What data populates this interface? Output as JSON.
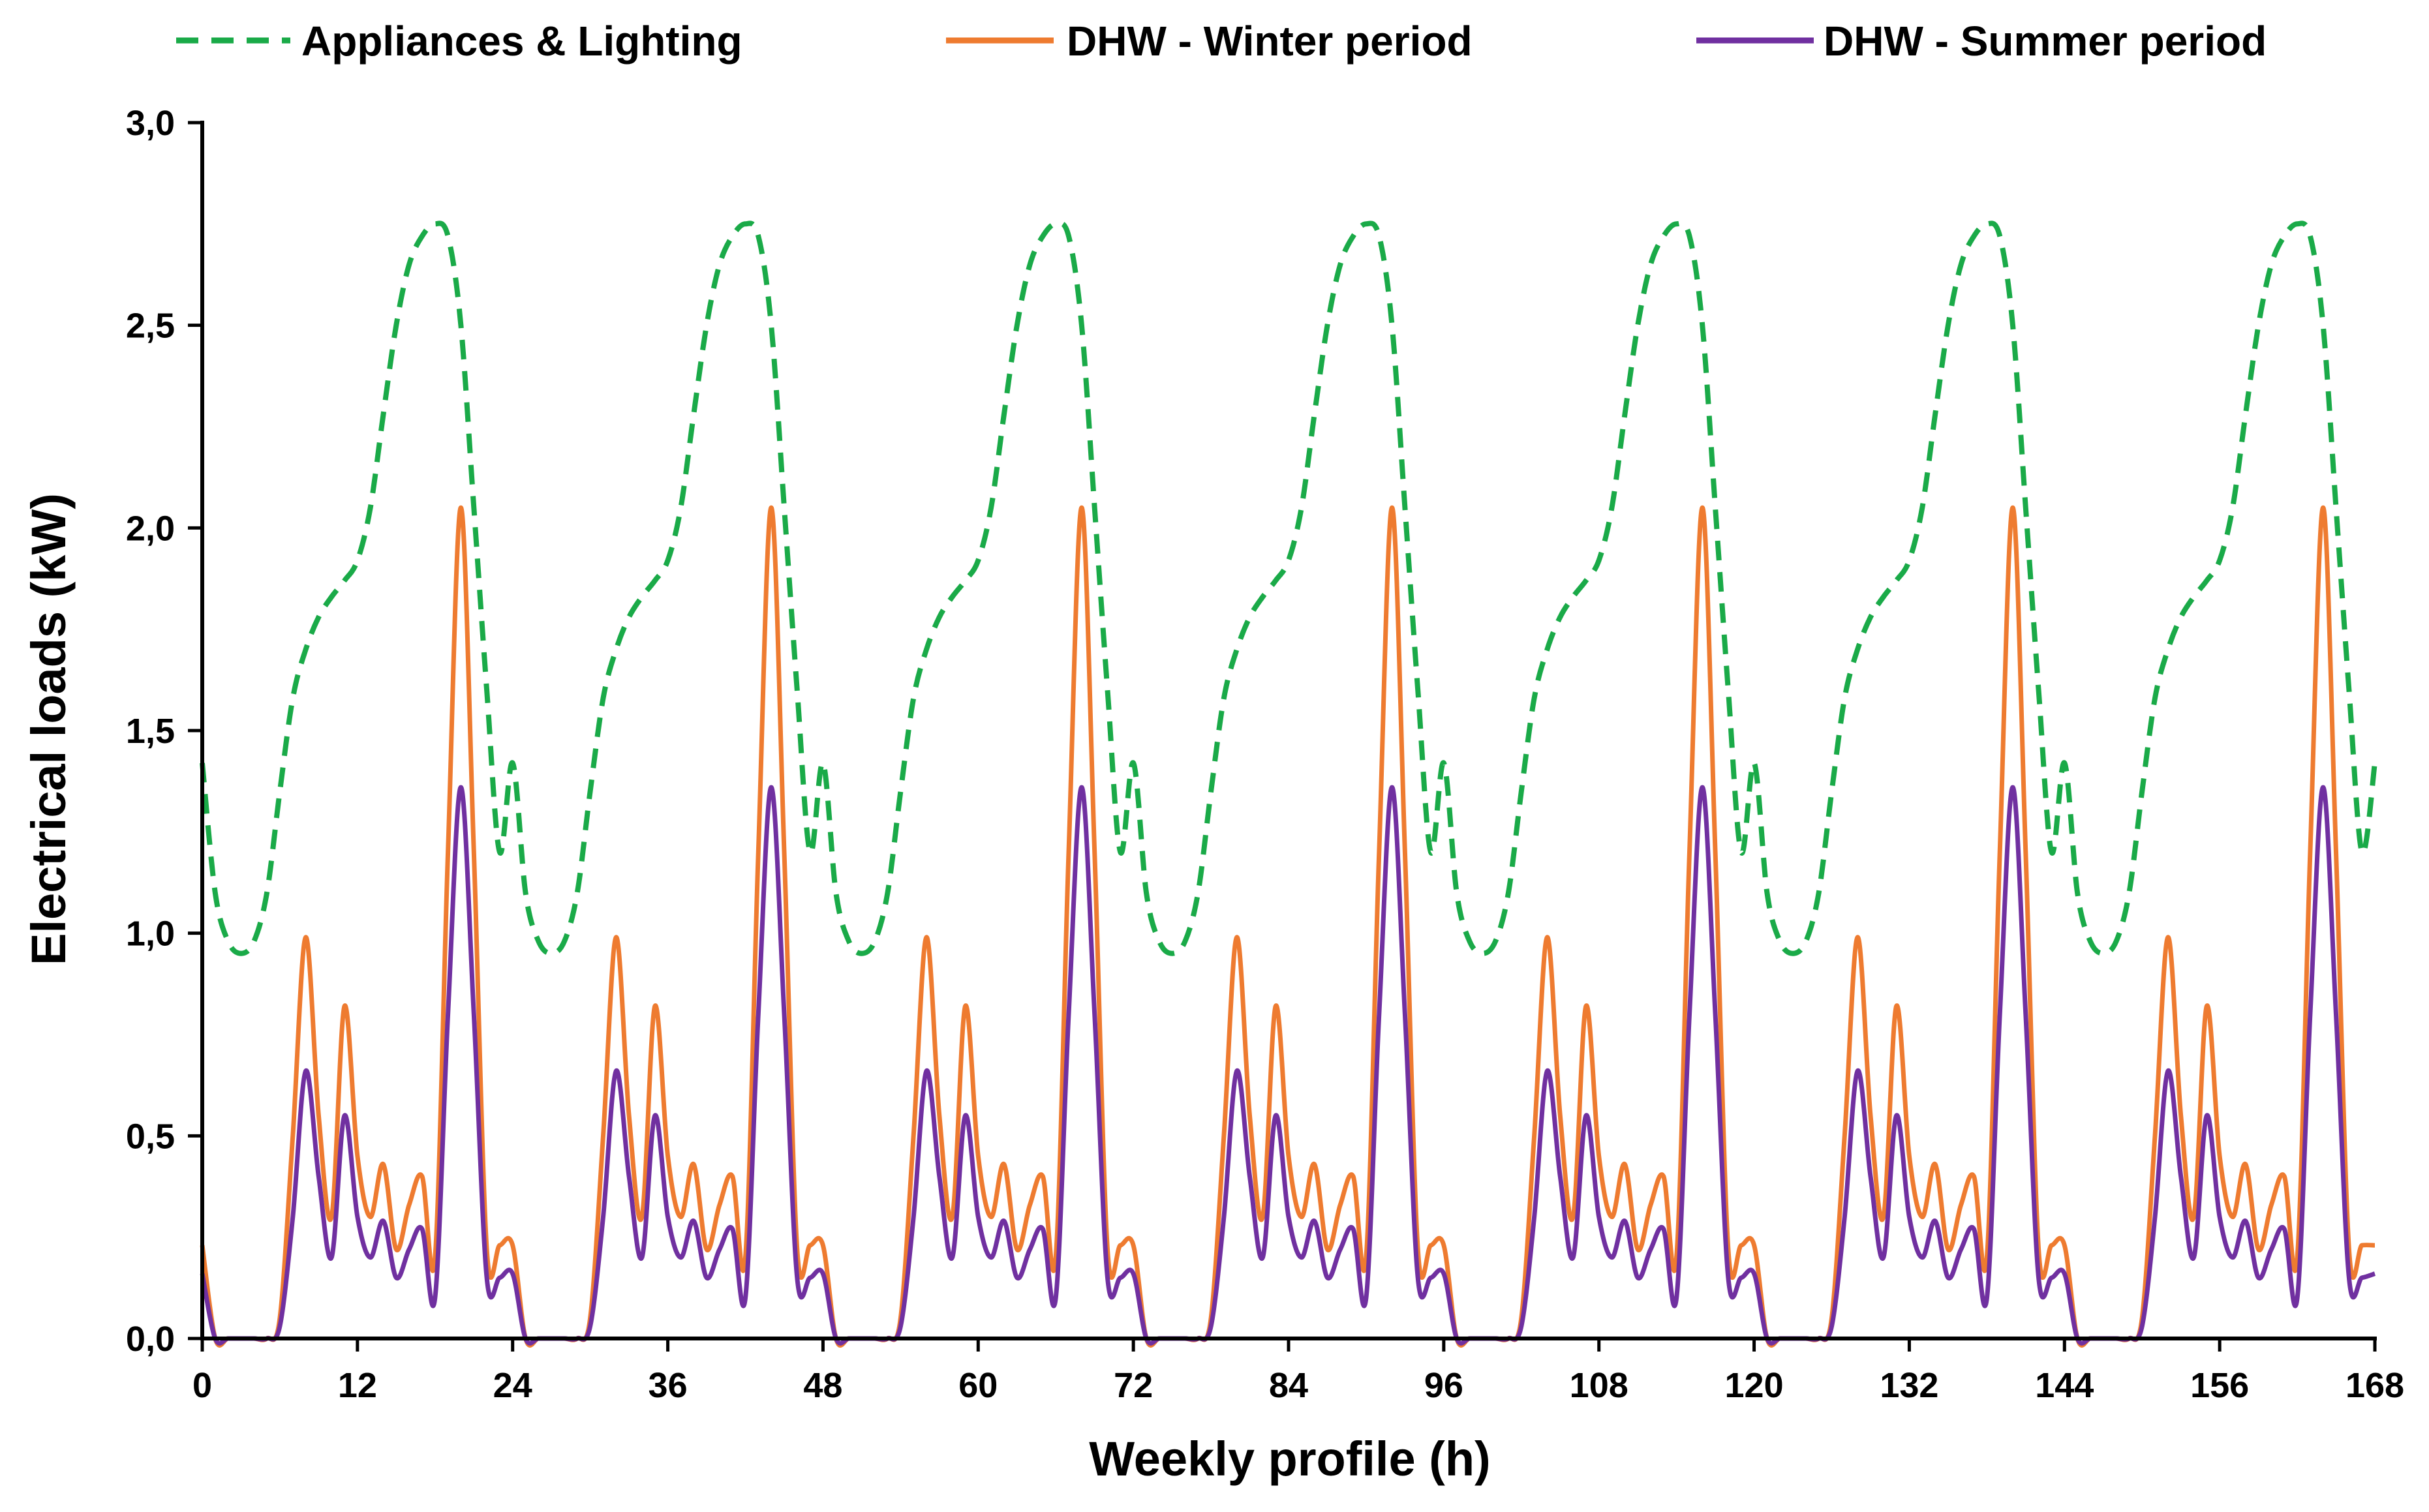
{
  "chart_data": {
    "type": "line",
    "title": "",
    "xlabel": "Weekly profile (h)",
    "ylabel": "Electrical loads (kW)",
    "xlim": [
      0,
      168
    ],
    "ylim": [
      0,
      3
    ],
    "grid": false,
    "legend_position": "top",
    "x_ticks": [
      0,
      12,
      24,
      36,
      48,
      60,
      72,
      84,
      96,
      108,
      120,
      132,
      144,
      156,
      168
    ],
    "x_tick_labels": [
      "0",
      "12",
      "24",
      "36",
      "48",
      "60",
      "72",
      "84",
      "96",
      "108",
      "120",
      "132",
      "144",
      "156",
      "168"
    ],
    "y_ticks": [
      0,
      0.5,
      1,
      1.5,
      2,
      2.5,
      3
    ],
    "y_tick_labels": [
      "0,0",
      "0,5",
      "1,0",
      "1,5",
      "2,0",
      "2,5",
      "3,0"
    ],
    "daily_profile_hours": [
      0,
      1,
      2,
      3,
      4,
      5,
      6,
      7,
      8,
      9,
      10,
      11,
      12,
      13,
      14,
      15,
      16,
      17,
      18,
      19,
      20,
      21,
      22,
      23
    ],
    "days": 7,
    "series": [
      {
        "name": "Appliances & Lighting",
        "color": "#1aaa48",
        "style": "dashed",
        "daily_values": [
          1.42,
          1.1,
          0.98,
          0.95,
          0.98,
          1.1,
          1.35,
          1.58,
          1.7,
          1.78,
          1.83,
          1.87,
          1.92,
          2.05,
          2.28,
          2.5,
          2.65,
          2.72,
          2.75,
          2.72,
          2.5,
          2.05,
          1.6,
          1.2
        ],
        "final_value": 1.42
      },
      {
        "name": "DHW - Winter period",
        "color": "#ee7b30",
        "style": "solid",
        "daily_values": [
          0.23,
          0.0,
          0.0,
          0.0,
          0.0,
          0.0,
          0.05,
          0.5,
          0.99,
          0.55,
          0.3,
          0.82,
          0.45,
          0.3,
          0.43,
          0.22,
          0.33,
          0.4,
          0.2,
          1.2,
          2.05,
          1.2,
          0.22,
          0.23
        ],
        "final_value": 0.23
      },
      {
        "name": "DHW - Summer period",
        "color": "#7030a0",
        "style": "solid",
        "daily_values": [
          0.16,
          0.0,
          0.0,
          0.0,
          0.0,
          0.0,
          0.03,
          0.3,
          0.66,
          0.4,
          0.2,
          0.55,
          0.3,
          0.2,
          0.29,
          0.15,
          0.22,
          0.27,
          0.1,
          0.8,
          1.36,
          0.8,
          0.15,
          0.15
        ],
        "final_value": 0.16
      }
    ]
  }
}
